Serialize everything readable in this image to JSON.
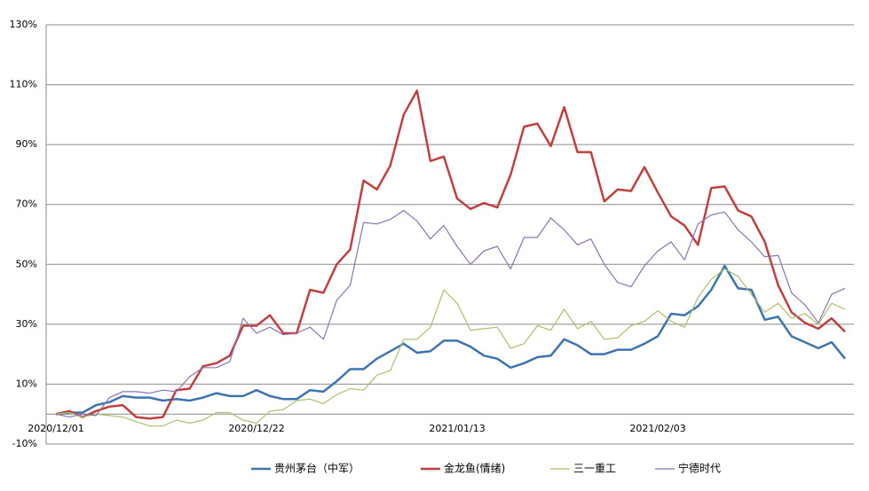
{
  "chart_data": {
    "type": "line",
    "categories": [
      "2020/12/01",
      null,
      null,
      null,
      null,
      null,
      null,
      null,
      null,
      null,
      null,
      null,
      null,
      null,
      null,
      "2020/12/22",
      null,
      null,
      null,
      null,
      null,
      null,
      null,
      null,
      null,
      null,
      null,
      null,
      null,
      null,
      "2021/01/13",
      null,
      null,
      null,
      null,
      null,
      null,
      null,
      null,
      null,
      null,
      null,
      null,
      null,
      null,
      "2021/02/03",
      null,
      null,
      null,
      null,
      null,
      null,
      null,
      null,
      null,
      null,
      null,
      null,
      null,
      null
    ],
    "series": [
      {
        "name": "贵州茅台（中军）",
        "color": "#3d74b1",
        "line_width": 2.5,
        "values": [
          0,
          0.5,
          0.5,
          3,
          4,
          6,
          5.5,
          5.5,
          4.5,
          5,
          4.5,
          5.5,
          7,
          6,
          6,
          8,
          6,
          5,
          5,
          8,
          7.5,
          11,
          15,
          15,
          18.5,
          21,
          23.5,
          20.5,
          21,
          24.5,
          24.5,
          22.5,
          19.5,
          18.5,
          15.5,
          17,
          19,
          19.5,
          25,
          23,
          20,
          20,
          21.5,
          21.5,
          23.5,
          26,
          33.5,
          33,
          36,
          41.5,
          49.5,
          42,
          41.5,
          31.5,
          32.5,
          26,
          24,
          22,
          24,
          18.5
        ]
      },
      {
        "name": "金龙鱼(情绪)",
        "color": "#c0403f",
        "line_width": 2.5,
        "values": [
          0,
          1,
          -1,
          1,
          2.5,
          3,
          -1,
          -1.5,
          -1,
          8,
          8.5,
          16,
          17,
          19.5,
          29.5,
          29.5,
          33,
          27,
          27,
          41.5,
          40.5,
          50,
          55,
          78,
          75,
          83,
          100,
          108,
          84.5,
          86,
          72,
          68.5,
          70.5,
          69,
          80,
          96,
          97,
          89.5,
          102.5,
          87.5,
          87.5,
          71,
          75,
          74.5,
          82.5,
          74,
          66,
          63,
          56.5,
          75.5,
          76,
          68,
          66,
          57.5,
          43,
          34,
          30.5,
          28.5,
          32,
          27.5
        ]
      },
      {
        "name": "三一重工",
        "color": "#a8c26a",
        "line_width": 1.2,
        "values": [
          0,
          0.5,
          -1,
          0,
          -0.5,
          -1,
          -2.5,
          -4,
          -4,
          -2,
          -3,
          -2,
          0.5,
          0.5,
          -2,
          -3,
          1,
          1.5,
          4.5,
          5,
          3.5,
          6.5,
          8.5,
          8,
          13,
          14.5,
          25,
          25,
          29,
          41.5,
          37,
          28,
          28.5,
          29,
          22,
          23.5,
          29.5,
          28,
          35,
          28.5,
          31,
          25,
          25.5,
          29.5,
          31,
          34.5,
          31,
          29,
          39,
          45,
          48.5,
          46,
          40,
          34,
          37,
          32,
          33.5,
          30,
          37,
          35
        ]
      },
      {
        "name": "宁德时代",
        "color": "#8c72b3",
        "line_width": 1.2,
        "values": [
          0,
          -1,
          0,
          -0.5,
          5.5,
          7.5,
          7.5,
          7,
          8,
          7.5,
          12.5,
          15.5,
          15.5,
          17.5,
          32,
          27,
          29,
          26.5,
          27,
          29,
          25,
          38,
          43,
          64,
          63.5,
          65,
          68,
          64.5,
          58.5,
          63,
          56,
          50,
          54.5,
          56,
          48.5,
          59,
          59,
          65.5,
          61.5,
          56.5,
          58.5,
          50,
          44,
          42.5,
          49.5,
          54.5,
          57.5,
          51.5,
          63.5,
          66.5,
          67.5,
          61.5,
          57.5,
          52.5,
          53,
          40.5,
          36.5,
          30.5,
          40,
          42
        ]
      }
    ],
    "ylim": [
      -10,
      130
    ],
    "yticks": [
      {
        "value": -10,
        "label": "-10%"
      },
      {
        "value": 10,
        "label": "10%"
      },
      {
        "value": 30,
        "label": "30%"
      },
      {
        "value": 50,
        "label": "50%"
      },
      {
        "value": 70,
        "label": "70%"
      },
      {
        "value": 90,
        "label": "90%"
      },
      {
        "value": 110,
        "label": "110%"
      },
      {
        "value": 130,
        "label": "130%"
      }
    ],
    "grid": true,
    "legend": "bottom"
  }
}
